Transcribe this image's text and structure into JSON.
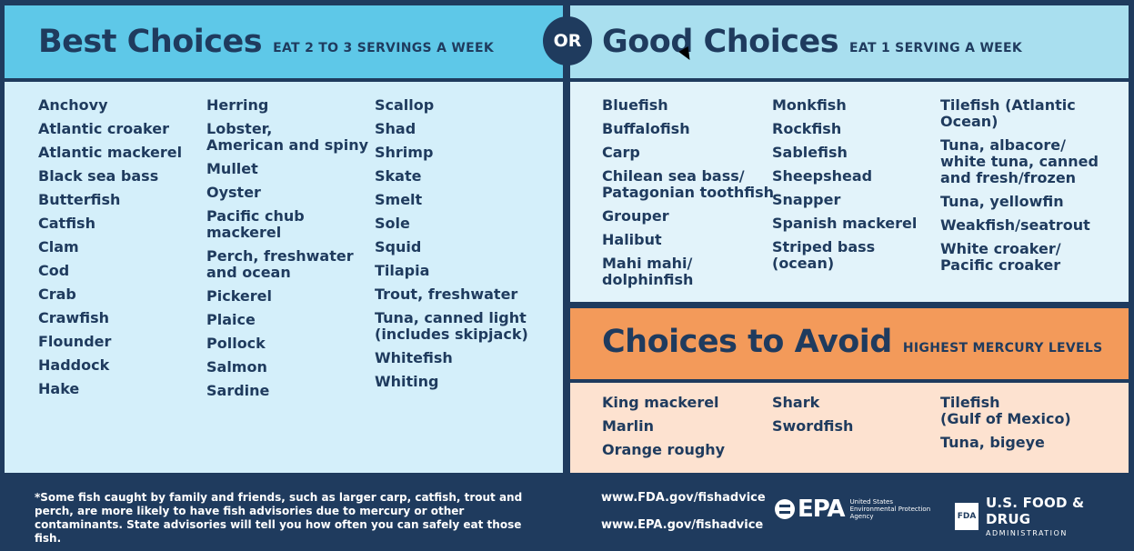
{
  "best": {
    "title": "Best Choices",
    "subtitle": "EAT 2 TO 3 SERVINGS A WEEK",
    "columns": [
      [
        "Anchovy",
        "Atlantic croaker",
        "Atlantic mackerel",
        "Black sea bass",
        "Butterfish",
        "Catfish",
        "Clam",
        "Cod",
        "Crab",
        "Crawfish",
        "Flounder",
        "Haddock",
        "Hake"
      ],
      [
        "Herring",
        "Lobster,\nAmerican and spiny",
        "Mullet",
        "Oyster",
        "Pacific chub\nmackerel",
        "Perch, freshwater\nand ocean",
        "Pickerel",
        "Plaice",
        "Pollock",
        "Salmon",
        "Sardine"
      ],
      [
        "Scallop",
        "Shad",
        "Shrimp",
        "Skate",
        "Smelt",
        "Sole",
        "Squid",
        "Tilapia",
        "Trout, freshwater",
        "Tuna, canned light\n(includes skipjack)",
        "Whitefish",
        "Whiting"
      ]
    ]
  },
  "or_label": "OR",
  "good": {
    "title": "Good Choices",
    "subtitle": "EAT 1 SERVING A WEEK",
    "columns": [
      [
        "Bluefish",
        "Buffalofish",
        "Carp",
        "Chilean sea bass/\nPatagonian toothfish",
        "Grouper",
        "Halibut",
        "Mahi mahi/\ndolphinfish"
      ],
      [
        "Monkfish",
        "Rockfish",
        "Sablefish",
        "Sheepshead",
        "Snapper",
        "Spanish mackerel",
        "Striped bass\n(ocean)"
      ],
      [
        "Tilefish (Atlantic\nOcean)",
        "Tuna, albacore/\nwhite tuna, canned\nand fresh/frozen",
        "Tuna, yellowfin",
        "Weakfish/seatrout",
        "White croaker/\nPacific croaker"
      ]
    ]
  },
  "avoid": {
    "title": "Choices to Avoid",
    "subtitle": "HIGHEST MERCURY LEVELS",
    "columns": [
      [
        "King mackerel",
        "Marlin",
        "Orange roughy"
      ],
      [
        "Shark",
        "Swordfish"
      ],
      [
        "Tilefish\n(Gulf of Mexico)",
        "Tuna, bigeye"
      ]
    ]
  },
  "footer": {
    "note": "*Some fish caught by family and friends, such as larger carp, catfish, trout and perch, are more likely to have fish advisories due to mercury or other contaminants. State advisories will tell you how often you can safely eat those fish.",
    "url_fda": "www.FDA.gov/fishadvice",
    "url_epa": "www.EPA.gov/fishadvice",
    "epa_word": "EPA",
    "epa_sub": "United States Environmental Protection Agency",
    "fda_box": "FDA",
    "fda_line1": "U.S. FOOD & DRUG",
    "fda_line2": "ADMINISTRATION"
  },
  "colors": {
    "navy": "#1f3b5e",
    "best_header": "#5ec8e8",
    "best_body": "#d4effa",
    "good_header": "#a9dfef",
    "good_body": "#e2f3fa",
    "avoid_header": "#f39a5a",
    "avoid_body": "#fde2d0"
  }
}
